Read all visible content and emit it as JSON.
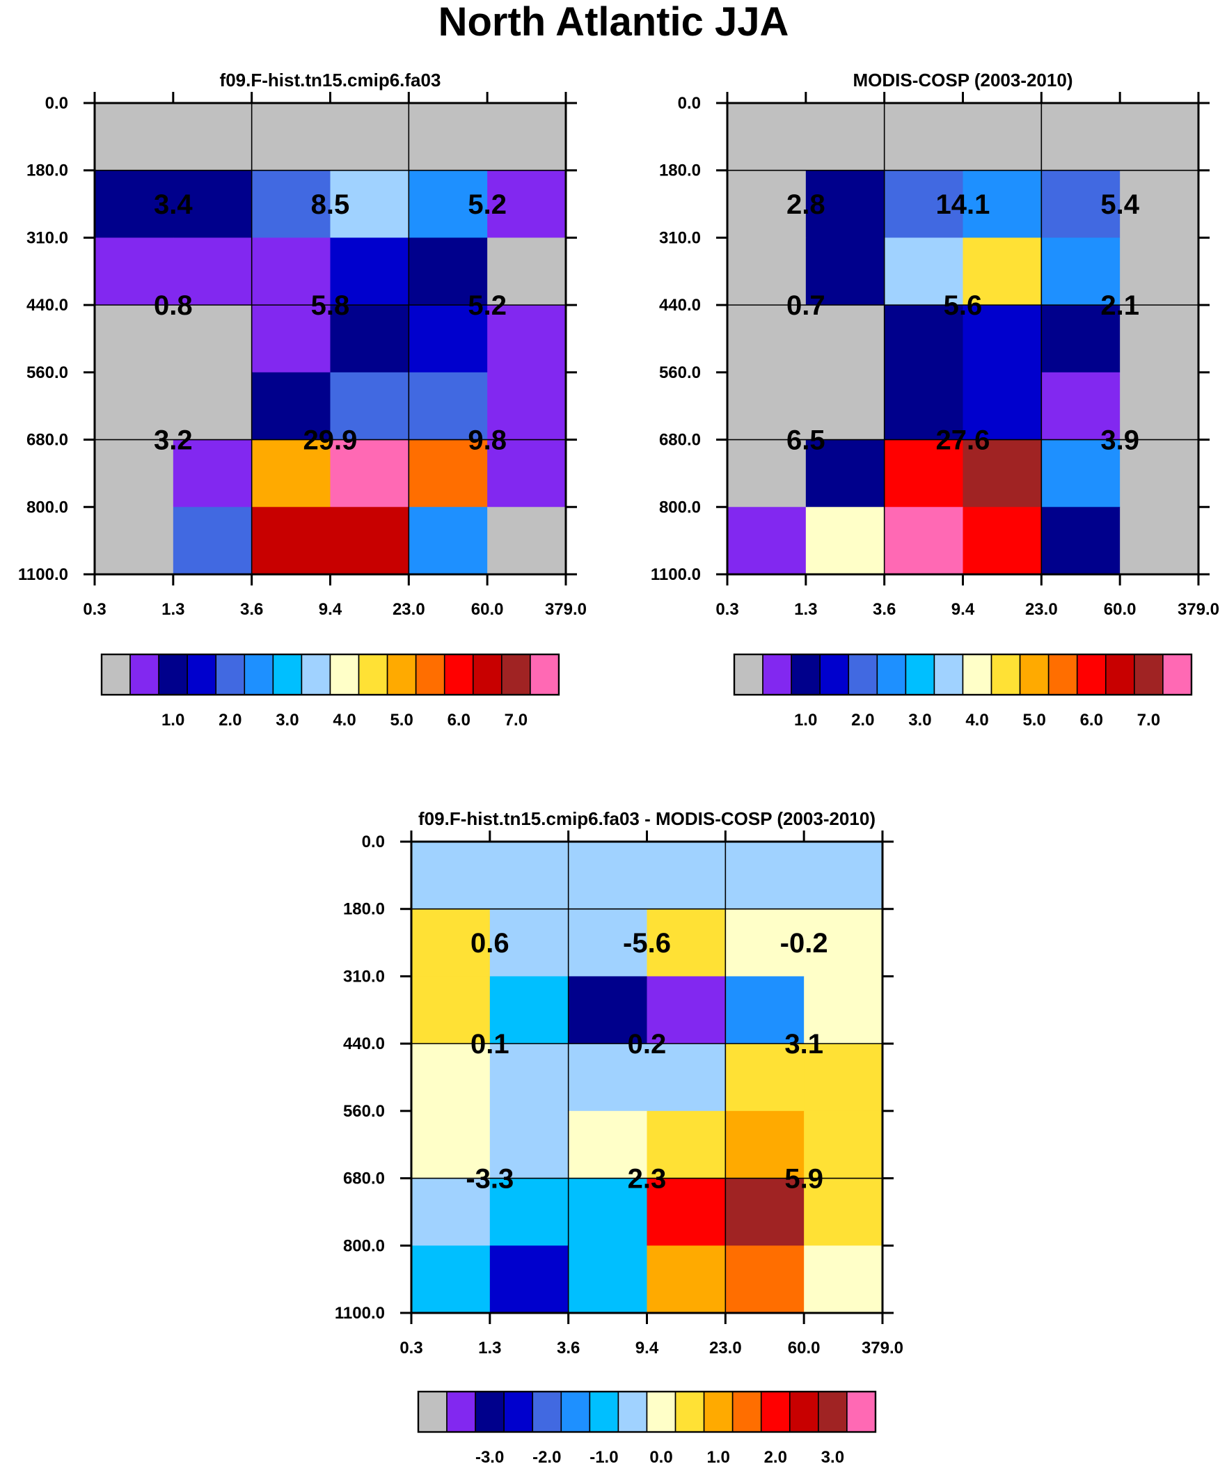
{
  "figure": {
    "title": "North Atlantic JJA"
  },
  "chart_data": [
    {
      "type": "heatmap",
      "title": "f09.F-hist.tn15.cmip6.fa03",
      "x_ticks": [
        "0.3",
        "1.3",
        "3.6",
        "9.4",
        "23.0",
        "60.0",
        "379.0"
      ],
      "y_ticks": [
        "0.0",
        "180.0",
        "310.0",
        "440.0",
        "560.0",
        "680.0",
        "800.0",
        "1100.0"
      ],
      "cells": [
        [
          0,
          0,
          0,
          0,
          0,
          0
        ],
        [
          2,
          2,
          4,
          7,
          5,
          1
        ],
        [
          1,
          1,
          1,
          3,
          2,
          0
        ],
        [
          0,
          0,
          1,
          2,
          3,
          1
        ],
        [
          0,
          0,
          2,
          4,
          4,
          1
        ],
        [
          0,
          1,
          10,
          15,
          11,
          1
        ],
        [
          0,
          4,
          13,
          13,
          5,
          0
        ]
      ],
      "summaries": [
        [
          "3.4",
          "8.5",
          "5.2"
        ],
        [
          "0.8",
          "5.8",
          "5.2"
        ],
        [
          "3.2",
          "29.9",
          "9.8"
        ]
      ],
      "colorbar": {
        "colors": [
          "#c0c0c0",
          "#8228f0",
          "#00008c",
          "#0000cd",
          "#4169e1",
          "#1e90ff",
          "#00bfff",
          "#a0d2ff",
          "#ffffc8",
          "#ffe135",
          "#ffaa00",
          "#ff6e00",
          "#ff0000",
          "#c80000",
          "#a02323",
          "#ff69b4"
        ],
        "labels": [
          "1.0",
          "2.0",
          "3.0",
          "4.0",
          "5.0",
          "6.0",
          "7.0"
        ]
      }
    },
    {
      "type": "heatmap",
      "title": "MODIS-COSP (2003-2010)",
      "x_ticks": [
        "0.3",
        "1.3",
        "3.6",
        "9.4",
        "23.0",
        "60.0",
        "379.0"
      ],
      "y_ticks": [
        "0.0",
        "180.0",
        "310.0",
        "440.0",
        "560.0",
        "680.0",
        "800.0",
        "1100.0"
      ],
      "cells": [
        [
          0,
          0,
          0,
          0,
          0,
          0
        ],
        [
          0,
          2,
          4,
          5,
          4,
          0
        ],
        [
          0,
          2,
          7,
          9,
          5,
          0
        ],
        [
          0,
          0,
          2,
          3,
          2,
          0
        ],
        [
          0,
          0,
          2,
          3,
          1,
          0
        ],
        [
          0,
          2,
          12,
          14,
          5,
          0
        ],
        [
          1,
          8,
          15,
          12,
          2,
          0
        ]
      ],
      "summaries": [
        [
          "2.8",
          "14.1",
          "5.4"
        ],
        [
          "0.7",
          "5.6",
          "2.1"
        ],
        [
          "6.5",
          "27.6",
          "3.9"
        ]
      ],
      "colorbar": {
        "colors": [
          "#c0c0c0",
          "#8228f0",
          "#00008c",
          "#0000cd",
          "#4169e1",
          "#1e90ff",
          "#00bfff",
          "#a0d2ff",
          "#ffffc8",
          "#ffe135",
          "#ffaa00",
          "#ff6e00",
          "#ff0000",
          "#c80000",
          "#a02323",
          "#ff69b4"
        ],
        "labels": [
          "1.0",
          "2.0",
          "3.0",
          "4.0",
          "5.0",
          "6.0",
          "7.0"
        ]
      }
    },
    {
      "type": "heatmap",
      "title": "f09.F-hist.tn15.cmip6.fa03 - MODIS-COSP (2003-2010)",
      "x_ticks": [
        "0.3",
        "1.3",
        "3.6",
        "9.4",
        "23.0",
        "60.0",
        "379.0"
      ],
      "y_ticks": [
        "0.0",
        "180.0",
        "310.0",
        "440.0",
        "560.0",
        "680.0",
        "800.0",
        "1100.0"
      ],
      "cells": [
        [
          7,
          7,
          7,
          7,
          7,
          7
        ],
        [
          9,
          7,
          7,
          9,
          8,
          8
        ],
        [
          9,
          6,
          2,
          1,
          5,
          8
        ],
        [
          8,
          7,
          7,
          7,
          9,
          9
        ],
        [
          8,
          7,
          8,
          9,
          10,
          9
        ],
        [
          7,
          6,
          6,
          12,
          14,
          9
        ],
        [
          6,
          3,
          6,
          10,
          11,
          8
        ]
      ],
      "summaries": [
        [
          "0.6",
          "-5.6",
          "-0.2"
        ],
        [
          "0.1",
          "0.2",
          "3.1"
        ],
        [
          "-3.3",
          "2.3",
          "5.9"
        ]
      ],
      "colorbar": {
        "colors": [
          "#c0c0c0",
          "#8228f0",
          "#00008c",
          "#0000cd",
          "#4169e1",
          "#1e90ff",
          "#00bfff",
          "#a0d2ff",
          "#ffffc8",
          "#ffe135",
          "#ffaa00",
          "#ff6e00",
          "#ff0000",
          "#c80000",
          "#a02323",
          "#ff69b4"
        ],
        "labels": [
          "-3.0",
          "-2.0",
          "-1.0",
          "0.0",
          "1.0",
          "2.0",
          "3.0"
        ]
      }
    }
  ]
}
